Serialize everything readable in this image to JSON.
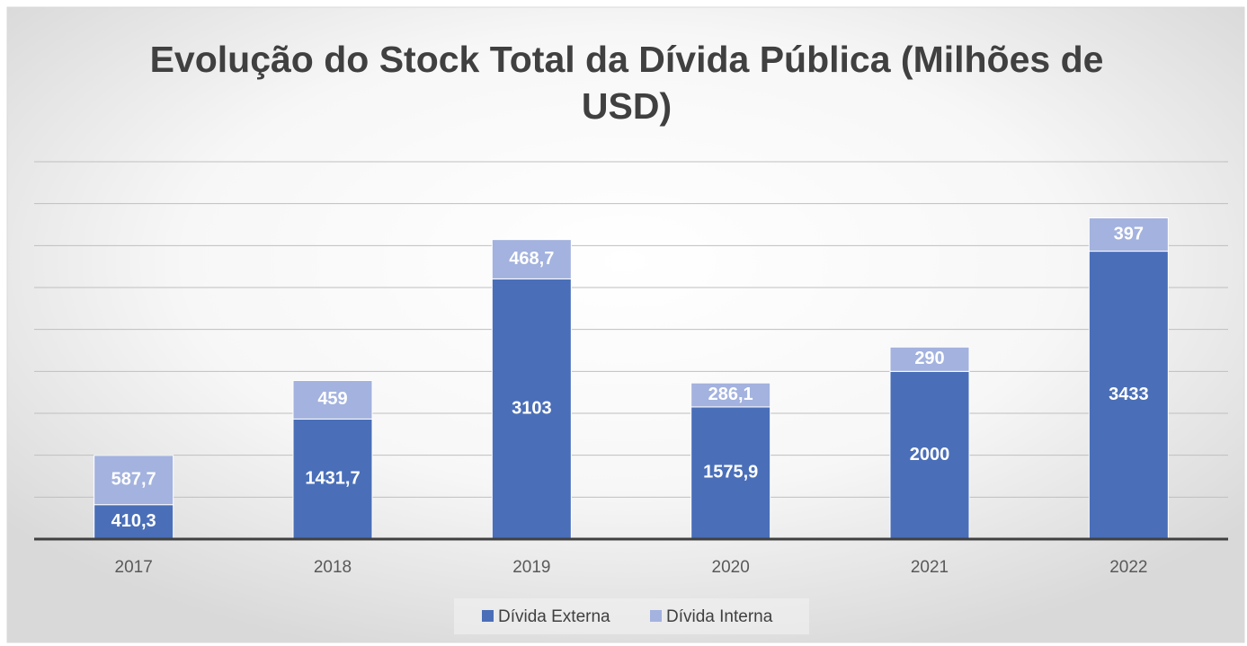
{
  "chart_data": {
    "type": "stacked_bar",
    "title": "Evolução do Stock Total da Dívida Pública (Milhões de USD)",
    "categories": [
      "2017",
      "2018",
      "2019",
      "2020",
      "2021",
      "2022"
    ],
    "series": [
      {
        "name": "Dívida Externa",
        "color": "#4a6fb8",
        "values": [
          410.3,
          1431.7,
          3103,
          1575.9,
          2000,
          3433
        ],
        "value_labels": [
          "410,3",
          "1431,7",
          "3103",
          "1575,9",
          "2000",
          "3433"
        ]
      },
      {
        "name": "Dívida Interna",
        "color": "#a3b2de",
        "values": [
          587.7,
          459,
          468.7,
          286.1,
          290,
          397
        ],
        "value_labels": [
          "587,7",
          "459",
          "468,7",
          "286,1",
          "290",
          "397"
        ]
      }
    ],
    "ylim": [
      0,
      4500
    ],
    "yticks": [
      0,
      500,
      1000,
      1500,
      2000,
      2500,
      3000,
      3500,
      4000,
      4500
    ],
    "grid": true,
    "legend": "bottom"
  }
}
